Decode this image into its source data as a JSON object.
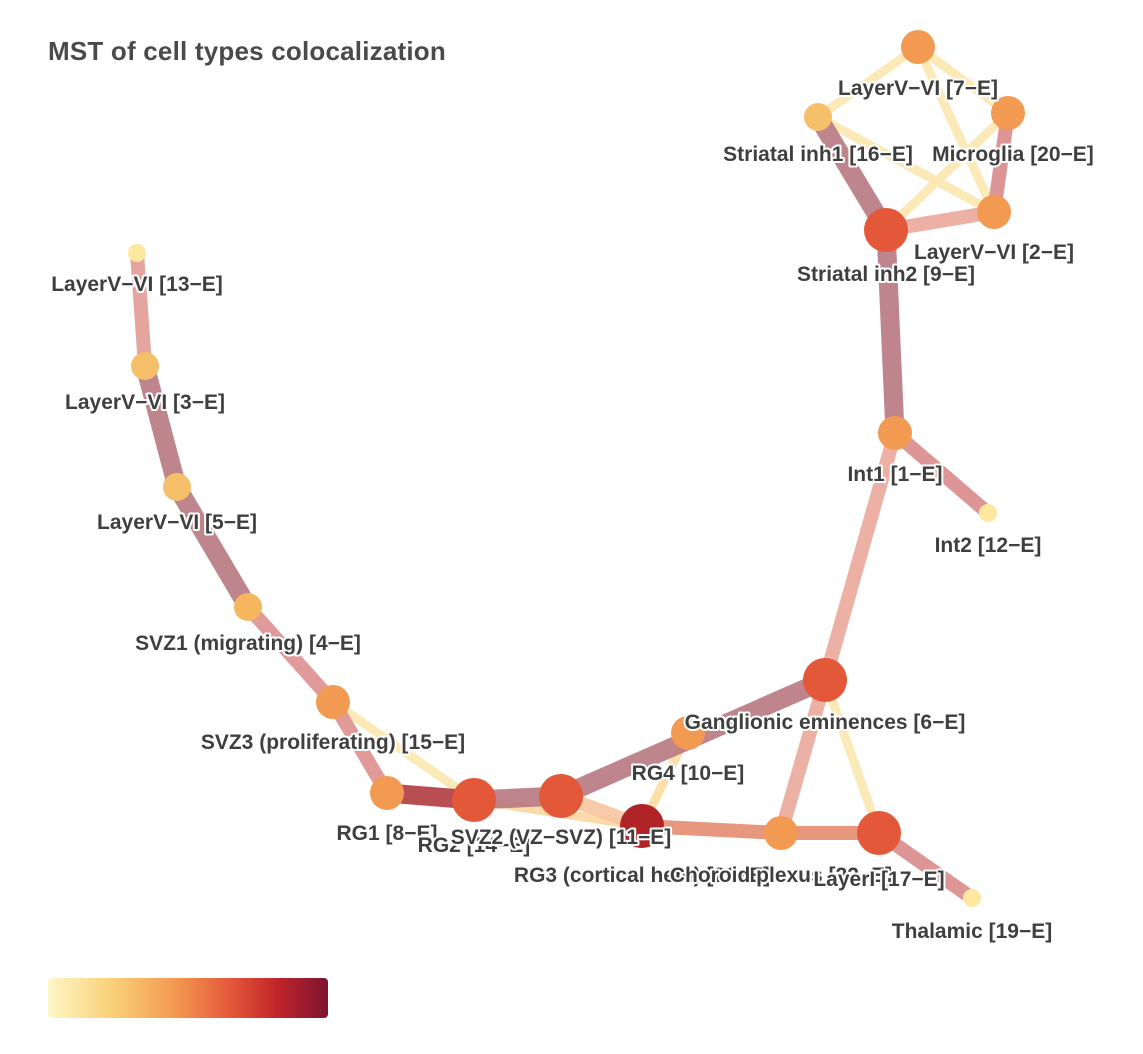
{
  "title": "MST of cell types colocalization",
  "colors": {
    "scale": [
      "#fff6c8",
      "#f9d27a",
      "#f39a52",
      "#e4583a",
      "#c0242a",
      "#7c1530"
    ],
    "edge_light": "#fbe7b0",
    "edge_pink": "#eba79b",
    "edge_salmon": "#e48c6f",
    "edge_mauve": "#b7787f",
    "edge_dark": "#b03a3f"
  },
  "nodes": [
    {
      "id": "n7",
      "label": "LayerV−VI [7−E]",
      "color": "#f39a52",
      "size": "medium"
    },
    {
      "id": "n16",
      "label": "Striatal inh1 [16−E]",
      "color": "#f6c06a",
      "size": "small"
    },
    {
      "id": "n20",
      "label": "Microglia [20−E]",
      "color": "#f39a52",
      "size": "medium"
    },
    {
      "id": "n2",
      "label": "LayerV−VI [2−E]",
      "color": "#f39a52",
      "size": "medium"
    },
    {
      "id": "n9",
      "label": "Striatal inh2 [9−E]",
      "color": "#e4583a",
      "size": "large"
    },
    {
      "id": "n1",
      "label": "Int1 [1−E]",
      "color": "#f39a52",
      "size": "medium"
    },
    {
      "id": "n12",
      "label": "Int2 [12−E]",
      "color": "#fde8a0",
      "size": "tiny"
    },
    {
      "id": "n13",
      "label": "LayerV−VI [13−E]",
      "color": "#fde8a0",
      "size": "tiny"
    },
    {
      "id": "n3",
      "label": "LayerV−VI [3−E]",
      "color": "#f6c06a",
      "size": "small"
    },
    {
      "id": "n5",
      "label": "LayerV−VI [5−E]",
      "color": "#f6c06a",
      "size": "small"
    },
    {
      "id": "n4",
      "label": "SVZ1 (migrating) [4−E]",
      "color": "#f6b65e",
      "size": "small"
    },
    {
      "id": "n15",
      "label": "SVZ3 (proliferating) [15−E]",
      "color": "#f39a52",
      "size": "medium"
    },
    {
      "id": "n8",
      "label": "RG1 [8−E]",
      "color": "#f39a52",
      "size": "medium"
    },
    {
      "id": "n14",
      "label": "RG2 [14−E]",
      "color": "#e4583a",
      "size": "large"
    },
    {
      "id": "n11",
      "label": "SVZ2 (VZ−SVZ) [11−E]",
      "color": "#e4583a",
      "size": "large"
    },
    {
      "id": "n21",
      "label": "RG3 (cortical hem) [21−E]",
      "color": "#b02427",
      "size": "large"
    },
    {
      "id": "n10",
      "label": "RG4 [10−E]",
      "color": "#f39a52",
      "size": "medium"
    },
    {
      "id": "n6",
      "label": "Ganglionic eminences [6−E]",
      "color": "#e4583a",
      "size": "large"
    },
    {
      "id": "n22",
      "label": "Choroid plexus [22−E]",
      "color": "#f39a52",
      "size": "medium"
    },
    {
      "id": "n17",
      "label": "LayerI [17−E]",
      "color": "#e4583a",
      "size": "large"
    },
    {
      "id": "n19",
      "label": "Thalamic [19−E]",
      "color": "#fde8a0",
      "size": "tiny"
    }
  ],
  "edges": [
    {
      "source": "n13",
      "target": "n3",
      "color": "#e39a95",
      "weight": "medium"
    },
    {
      "source": "n3",
      "target": "n5",
      "color": "#b7787f",
      "weight": "heavy"
    },
    {
      "source": "n5",
      "target": "n4",
      "color": "#b7787f",
      "weight": "heavy"
    },
    {
      "source": "n4",
      "target": "n15",
      "color": "#dd8f8f",
      "weight": "medium"
    },
    {
      "source": "n15",
      "target": "n8",
      "color": "#dd8f8f",
      "weight": "medium"
    },
    {
      "source": "n15",
      "target": "n14",
      "color": "#fbe7b0",
      "weight": "light"
    },
    {
      "source": "n8",
      "target": "n14",
      "color": "#b03a3f",
      "weight": "heavy"
    },
    {
      "source": "n14",
      "target": "n11",
      "color": "#b7787f",
      "weight": "heavy"
    },
    {
      "source": "n14",
      "target": "n21",
      "color": "#f9d6a0",
      "weight": "light"
    },
    {
      "source": "n11",
      "target": "n6",
      "color": "#b7787f",
      "weight": "heavy"
    },
    {
      "source": "n11",
      "target": "n21",
      "color": "#f6c5a0",
      "weight": "medium"
    },
    {
      "source": "n21",
      "target": "n10",
      "color": "#f9dca0",
      "weight": "light"
    },
    {
      "source": "n21",
      "target": "n22",
      "color": "#e48c6f",
      "weight": "medium"
    },
    {
      "source": "n22",
      "target": "n17",
      "color": "#e48c6f",
      "weight": "medium"
    },
    {
      "source": "n22",
      "target": "n6",
      "color": "#eba79b",
      "weight": "medium"
    },
    {
      "source": "n6",
      "target": "n17",
      "color": "#fbe7b0",
      "weight": "light"
    },
    {
      "source": "n6",
      "target": "n1",
      "color": "#eba79b",
      "weight": "medium"
    },
    {
      "source": "n17",
      "target": "n19",
      "color": "#d98a8a",
      "weight": "medium"
    },
    {
      "source": "n1",
      "target": "n12",
      "color": "#d98a8a",
      "weight": "medium"
    },
    {
      "source": "n1",
      "target": "n9",
      "color": "#b7787f",
      "weight": "heavy"
    },
    {
      "source": "n9",
      "target": "n16",
      "color": "#b7787f",
      "weight": "heavy"
    },
    {
      "source": "n9",
      "target": "n2",
      "color": "#eba79b",
      "weight": "medium"
    },
    {
      "source": "n9",
      "target": "n20",
      "color": "#fbe7b0",
      "weight": "light"
    },
    {
      "source": "n2",
      "target": "n20",
      "color": "#d98a8a",
      "weight": "medium"
    },
    {
      "source": "n2",
      "target": "n16",
      "color": "#fbe7b0",
      "weight": "light"
    },
    {
      "source": "n16",
      "target": "n7",
      "color": "#fbe7b0",
      "weight": "light"
    },
    {
      "source": "n7",
      "target": "n20",
      "color": "#fbe7b0",
      "weight": "light"
    },
    {
      "source": "n7",
      "target": "n2",
      "color": "#fbe7b0",
      "weight": "light"
    }
  ]
}
